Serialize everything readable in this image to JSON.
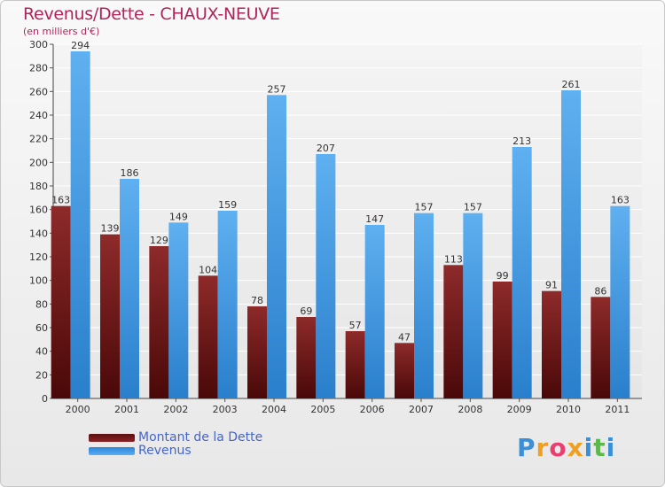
{
  "chart_data": {
    "type": "bar",
    "title": "Revenus/Dette - CHAUX-NEUVE",
    "subtitle": "(en milliers d'€)",
    "categories": [
      "2000",
      "2001",
      "2002",
      "2003",
      "2004",
      "2005",
      "2006",
      "2007",
      "2008",
      "2009",
      "2010",
      "2011"
    ],
    "series": [
      {
        "name": "Montant de la Dette",
        "color": "#7a1a1a",
        "values": [
          163,
          139,
          129,
          104,
          78,
          69,
          57,
          47,
          113,
          99,
          91,
          86
        ]
      },
      {
        "name": "Revenus",
        "color": "#3d9ae2",
        "values": [
          294,
          186,
          149,
          159,
          257,
          207,
          147,
          157,
          157,
          213,
          261,
          163
        ]
      }
    ],
    "ylim": [
      0,
      300
    ],
    "yticks": [
      0,
      20,
      40,
      60,
      80,
      100,
      120,
      140,
      160,
      180,
      200,
      220,
      240,
      260,
      280,
      300
    ],
    "grid": true,
    "legend_position": "bottom-left"
  },
  "logo": {
    "text": "Proxiti",
    "letters": [
      {
        "ch": "P",
        "color": "#3b8fd6"
      },
      {
        "ch": "r",
        "color": "#f0a020"
      },
      {
        "ch": "o",
        "color": "#e84070"
      },
      {
        "ch": "x",
        "color": "#f0a020"
      },
      {
        "ch": "i",
        "color": "#3b8fd6"
      },
      {
        "ch": "t",
        "color": "#5cb84c"
      },
      {
        "ch": "i",
        "color": "#3b8fd6"
      }
    ]
  }
}
